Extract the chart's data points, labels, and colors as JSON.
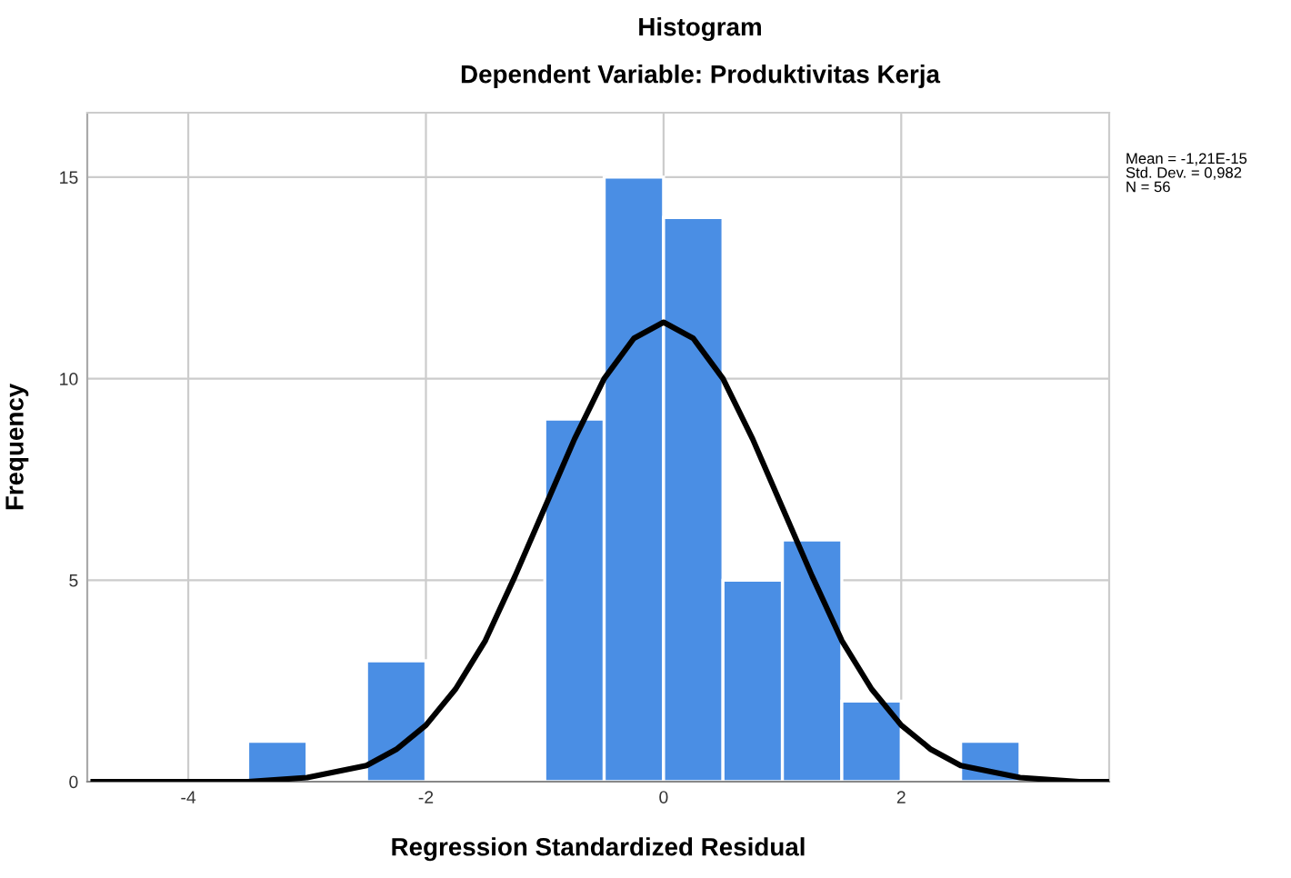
{
  "chart_data": {
    "type": "histogram",
    "title": "Histogram",
    "subtitle": "Dependent Variable: Produktivitas Kerja",
    "xlabel": "Regression Standardized Residual",
    "ylabel": "Frequency",
    "bins": [
      -3.5,
      -3.0,
      -2.5,
      -2.0,
      -1.5,
      -1.0,
      -0.5,
      0.0,
      0.5,
      1.0,
      1.5,
      2.0,
      2.5,
      3.0
    ],
    "values": [
      1,
      0,
      3,
      0,
      0,
      9,
      15,
      14,
      5,
      6,
      2,
      0,
      1
    ],
    "color": "#4a8ee4",
    "series": [
      {
        "type": "line",
        "color": "#000000",
        "x": [
          -4.8,
          -4.0,
          -3.5,
          -3.0,
          -2.5,
          -2.25,
          -2.0,
          -1.75,
          -1.5,
          -1.25,
          -1.0,
          -0.75,
          -0.5,
          -0.25,
          0.0,
          0.25,
          0.5,
          0.75,
          1.0,
          1.25,
          1.5,
          1.75,
          2.0,
          2.25,
          2.5,
          3.0,
          3.5,
          3.75
        ],
        "values": [
          0.0,
          0.0,
          0.0,
          0.1,
          0.4,
          0.8,
          1.4,
          2.3,
          3.5,
          5.1,
          6.8,
          8.5,
          10.0,
          11.0,
          11.4,
          11.0,
          10.0,
          8.5,
          6.8,
          5.1,
          3.5,
          2.3,
          1.4,
          0.8,
          0.4,
          0.1,
          0.0,
          0.0
        ]
      }
    ],
    "xlim": [
      -4.85,
      3.75
    ],
    "ylim": [
      0,
      16.6
    ],
    "xticks": [
      -4,
      -2,
      0,
      2
    ],
    "yticks": [
      0,
      5,
      10,
      15
    ],
    "grid": true,
    "legend": false,
    "annotations": [
      "Mean = -1,21E-15",
      "Std. Dev. = 0,982",
      "N = 56"
    ]
  }
}
